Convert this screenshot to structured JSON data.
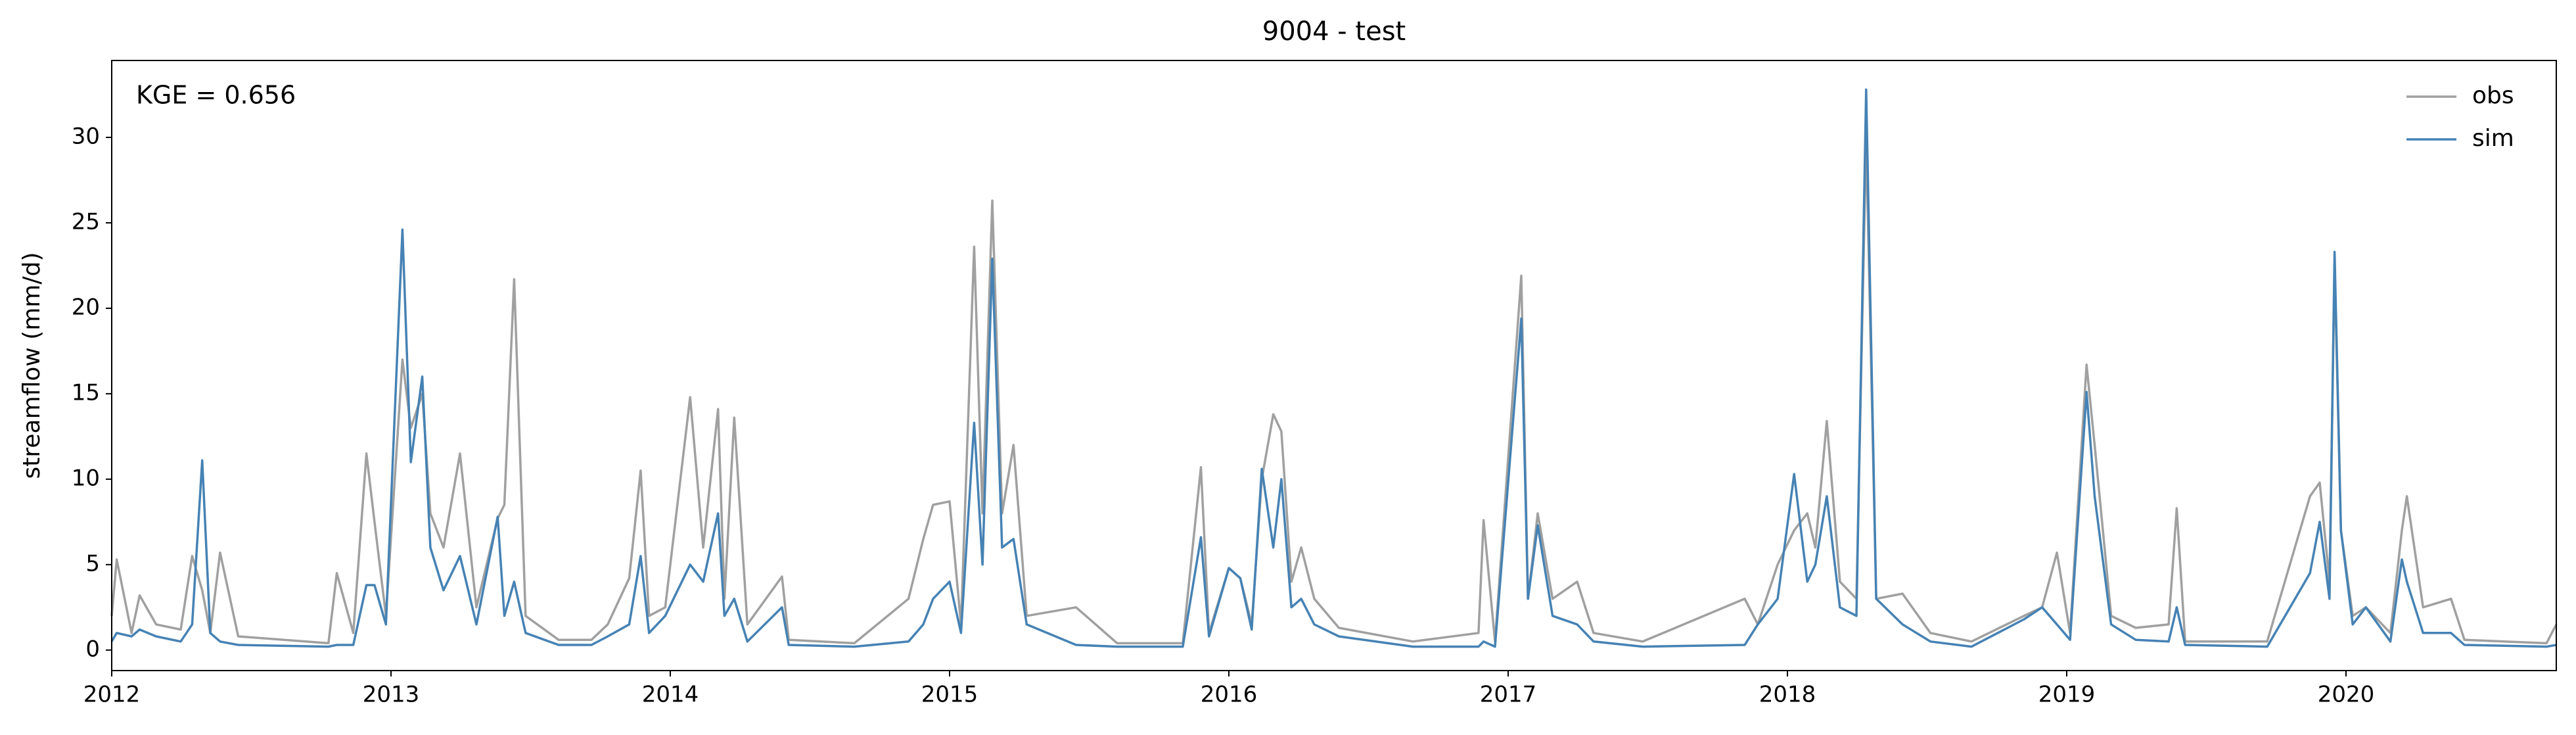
{
  "chart_data": {
    "type": "line",
    "title": "9004 - test",
    "ylabel": "streamflow (mm/d)",
    "annotation": "KGE = 0.656",
    "legend": "upper right",
    "grid": false,
    "x": [
      2012.0,
      2012.018,
      2012.071,
      2012.1,
      2012.159,
      2012.247,
      2012.288,
      2012.324,
      2012.353,
      2012.388,
      2012.453,
      2012.776,
      2012.806,
      2012.865,
      2012.912,
      2012.941,
      2012.982,
      2013.041,
      2013.071,
      2013.112,
      2013.141,
      2013.188,
      2013.247,
      2013.306,
      2013.382,
      2013.406,
      2013.441,
      2013.482,
      2013.6,
      2013.718,
      2013.776,
      2013.853,
      2013.894,
      2013.924,
      2013.982,
      2014.071,
      2014.118,
      2014.171,
      2014.194,
      2014.229,
      2014.276,
      2014.4,
      2014.424,
      2014.659,
      2014.853,
      2014.906,
      2014.941,
      2015.0,
      2015.041,
      2015.088,
      2015.118,
      2015.153,
      2015.188,
      2015.229,
      2015.276,
      2015.453,
      2015.6,
      2015.835,
      2015.9,
      2015.929,
      2016.0,
      2016.041,
      2016.082,
      2016.118,
      2016.159,
      2016.188,
      2016.224,
      2016.259,
      2016.306,
      2016.394,
      2016.659,
      2016.894,
      2016.912,
      2016.953,
      2017.047,
      2017.071,
      2017.106,
      2017.159,
      2017.247,
      2017.306,
      2017.482,
      2017.847,
      2017.894,
      2017.965,
      2018.024,
      2018.071,
      2018.1,
      2018.141,
      2018.188,
      2018.247,
      2018.282,
      2018.318,
      2018.412,
      2018.512,
      2018.659,
      2018.847,
      2018.912,
      2018.965,
      2019.012,
      2019.071,
      2019.1,
      2019.159,
      2019.247,
      2019.365,
      2019.394,
      2019.424,
      2019.718,
      2019.871,
      2019.906,
      2019.941,
      2019.959,
      2019.982,
      2020.024,
      2020.071,
      2020.159,
      2020.2,
      2020.218,
      2020.276,
      2020.376,
      2020.424,
      2020.718,
      2020.753
    ],
    "series": [
      {
        "name": "obs",
        "color": "#a0a0a0",
        "values": [
          2.0,
          5.3,
          1.0,
          3.2,
          1.5,
          1.2,
          5.5,
          3.5,
          1.0,
          5.7,
          0.8,
          0.4,
          4.5,
          1.0,
          11.5,
          7.5,
          2.0,
          17.0,
          13.0,
          15.0,
          8.0,
          6.0,
          11.5,
          2.5,
          7.7,
          8.5,
          21.7,
          2.0,
          0.6,
          0.6,
          1.5,
          4.2,
          10.5,
          2.0,
          2.5,
          14.8,
          6.0,
          14.1,
          3.0,
          13.6,
          1.5,
          4.3,
          0.6,
          0.4,
          3.0,
          6.5,
          8.5,
          8.7,
          1.5,
          23.6,
          8.0,
          26.3,
          8.0,
          12.0,
          2.0,
          2.5,
          0.4,
          0.4,
          10.7,
          1.0,
          4.8,
          4.2,
          1.5,
          10.0,
          13.8,
          12.8,
          4.0,
          6.0,
          3.0,
          1.3,
          0.5,
          1.0,
          7.6,
          0.5,
          21.9,
          3.0,
          8.0,
          3.0,
          4.0,
          1.0,
          0.5,
          3.0,
          1.5,
          5.0,
          7.0,
          8.0,
          6.0,
          13.4,
          4.0,
          3.0,
          30.0,
          3.0,
          3.3,
          1.0,
          0.5,
          2.0,
          2.5,
          5.7,
          1.0,
          16.7,
          12.0,
          2.0,
          1.3,
          1.5,
          8.3,
          0.5,
          0.5,
          9.0,
          9.8,
          4.0,
          22.5,
          7.0,
          2.0,
          2.5,
          1.0,
          7.0,
          9.0,
          2.5,
          3.0,
          0.6,
          0.4,
          1.5
        ]
      },
      {
        "name": "sim",
        "color": "#4682b4",
        "values": [
          0.5,
          1.0,
          0.8,
          1.2,
          0.8,
          0.5,
          1.5,
          11.1,
          1.0,
          0.5,
          0.3,
          0.2,
          0.3,
          0.3,
          3.8,
          3.8,
          1.5,
          24.6,
          11.0,
          16.0,
          6.0,
          3.5,
          5.5,
          1.5,
          7.8,
          2.0,
          4.0,
          1.0,
          0.3,
          0.3,
          0.8,
          1.5,
          5.5,
          1.0,
          2.0,
          5.0,
          4.0,
          8.0,
          2.0,
          3.0,
          0.5,
          2.5,
          0.3,
          0.2,
          0.5,
          1.5,
          3.0,
          4.0,
          1.0,
          13.3,
          5.0,
          22.9,
          6.0,
          6.5,
          1.5,
          0.3,
          0.2,
          0.2,
          6.6,
          0.8,
          4.8,
          4.2,
          1.2,
          10.6,
          6.0,
          10.0,
          2.5,
          3.0,
          1.5,
          0.8,
          0.2,
          0.2,
          0.5,
          0.2,
          19.4,
          3.0,
          7.3,
          2.0,
          1.5,
          0.5,
          0.2,
          0.3,
          1.5,
          3.0,
          10.3,
          4.0,
          5.0,
          9.0,
          2.5,
          2.0,
          32.8,
          3.0,
          1.5,
          0.5,
          0.2,
          1.8,
          2.5,
          1.5,
          0.6,
          15.1,
          9.0,
          1.5,
          0.6,
          0.5,
          2.5,
          0.3,
          0.2,
          4.5,
          7.5,
          3.0,
          23.3,
          7.0,
          1.5,
          2.5,
          0.5,
          5.3,
          4.0,
          1.0,
          1.0,
          0.3,
          0.2,
          0.3
        ]
      }
    ],
    "xlim": [
      2012,
      2020.753
    ],
    "xticks": [
      2012,
      2013,
      2014,
      2015,
      2016,
      2017,
      2018,
      2019,
      2020
    ],
    "ylim": [
      -1.2,
      34.5
    ],
    "yticks": [
      0,
      5,
      10,
      15,
      20,
      25,
      30
    ]
  }
}
